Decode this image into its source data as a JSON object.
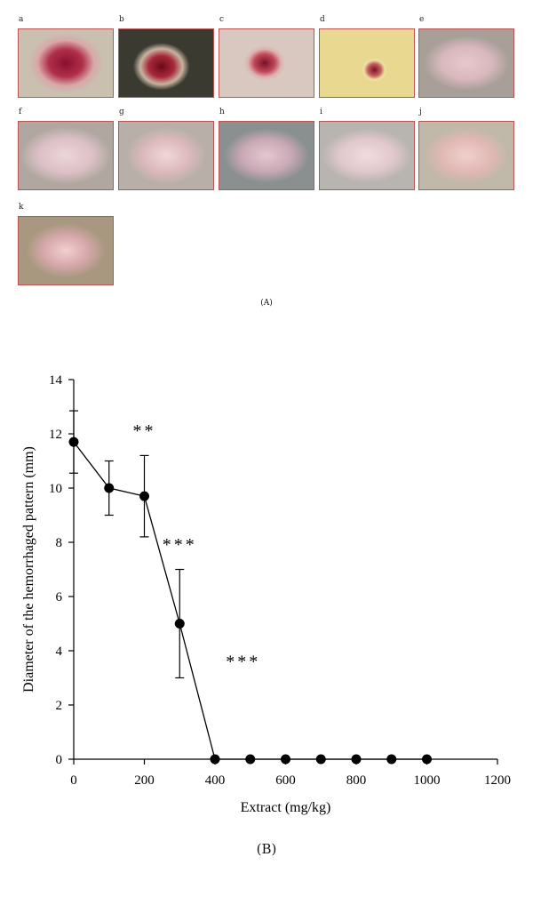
{
  "panel_a": {
    "photo_labels": [
      "a",
      "b",
      "c",
      "d",
      "e",
      "f",
      "g",
      "h",
      "i",
      "j",
      "k"
    ],
    "caption": "(A)"
  },
  "panel_b": {
    "caption": "(B)"
  },
  "chart_data": {
    "type": "line",
    "xlabel": "Extract (mg/kg)",
    "ylabel": "Diameter of the hemorrhaged pattern (mm)",
    "xlim": [
      0,
      1200
    ],
    "ylim": [
      0,
      14
    ],
    "x_ticks": [
      "0",
      "200",
      "400",
      "600",
      "800",
      "1000",
      "1200"
    ],
    "y_ticks": [
      "0",
      "2",
      "4",
      "6",
      "8",
      "10",
      "12",
      "14"
    ],
    "grid": false,
    "legend": "none",
    "series": [
      {
        "x": [
          0,
          100,
          200,
          300,
          400,
          500,
          600,
          700,
          800,
          900,
          1000
        ],
        "y": [
          11.7,
          10.0,
          9.7,
          5.0,
          0,
          0,
          0,
          0,
          0,
          0,
          0
        ],
        "error": [
          1.15,
          1.0,
          1.5,
          2.0,
          0,
          0,
          0,
          0,
          0,
          0,
          0
        ]
      }
    ],
    "annotations": [
      {
        "text": "**",
        "x": 200,
        "y": 11.9
      },
      {
        "text": "***",
        "x": 300,
        "y": 7.7
      },
      {
        "text": "***",
        "x": 480,
        "y": 3.4
      }
    ]
  }
}
